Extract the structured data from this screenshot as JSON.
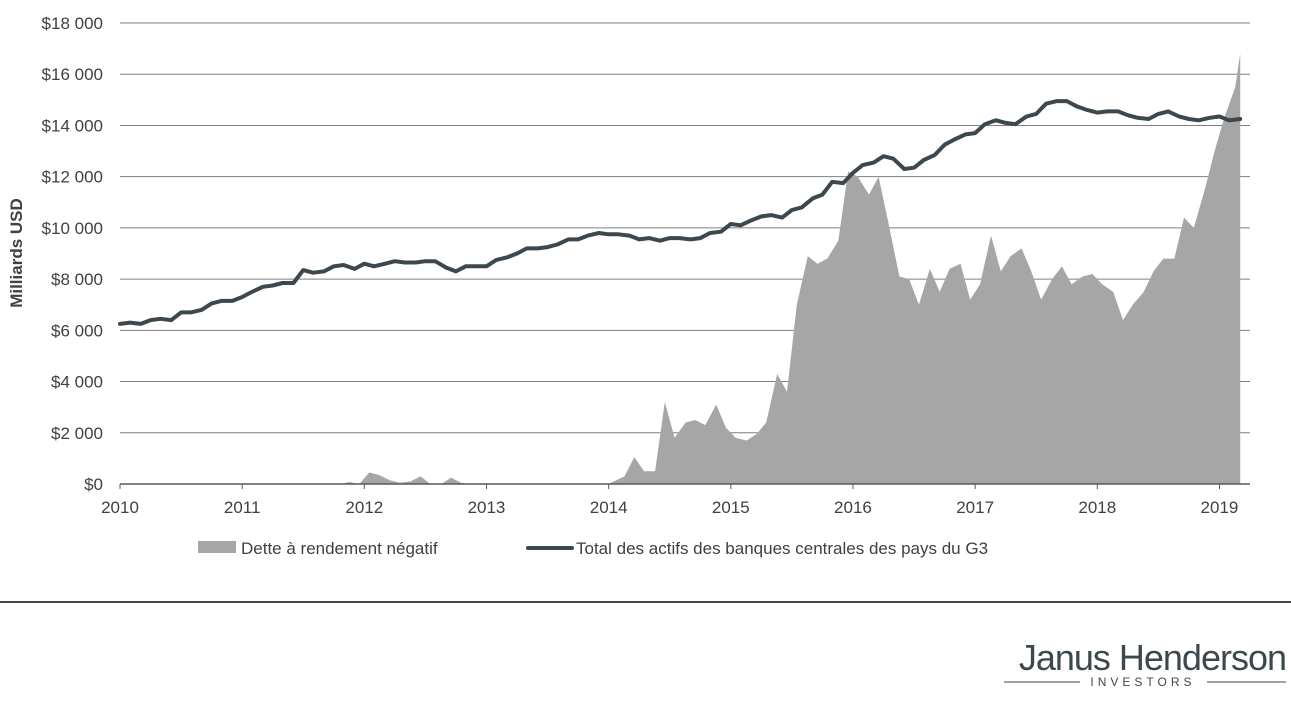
{
  "chart_data": {
    "type": "area+line",
    "ylabel": "Milliards USD",
    "ylim": [
      0,
      18000
    ],
    "y_ticks": [
      0,
      2000,
      4000,
      6000,
      8000,
      10000,
      12000,
      14000,
      16000,
      18000
    ],
    "y_tick_labels": [
      "$0",
      "$2 000",
      "$4 000",
      "$6 000",
      "$8 000",
      "$10 000",
      "$12 000",
      "$14 000",
      "$16 000",
      "$18 000"
    ],
    "xlim": [
      2010,
      2019.25
    ],
    "x_ticks": [
      2010,
      2011,
      2012,
      2013,
      2014,
      2015,
      2016,
      2017,
      2018,
      2019
    ],
    "x_tick_labels": [
      "2010",
      "2011",
      "2012",
      "2013",
      "2014",
      "2015",
      "2016",
      "2017",
      "2018",
      "2019"
    ],
    "grid": "horizontal",
    "legend_position": "bottom",
    "series": [
      {
        "name": "Dette à rendement négatif",
        "kind": "area",
        "color": "#a6a6a6",
        "x": [
          2010.0,
          2011.0,
          2011.8,
          2011.88,
          2011.96,
          2012.04,
          2012.12,
          2012.21,
          2012.29,
          2012.38,
          2012.46,
          2012.54,
          2012.63,
          2012.71,
          2012.79,
          2012.88,
          2012.96,
          2013.5,
          2014.0,
          2014.13,
          2014.21,
          2014.29,
          2014.38,
          2014.46,
          2014.54,
          2014.63,
          2014.71,
          2014.79,
          2014.88,
          2014.96,
          2015.04,
          2015.13,
          2015.21,
          2015.29,
          2015.38,
          2015.46,
          2015.54,
          2015.63,
          2015.71,
          2015.79,
          2015.88,
          2015.96,
          2016.04,
          2016.13,
          2016.21,
          2016.29,
          2016.38,
          2016.46,
          2016.54,
          2016.63,
          2016.71,
          2016.79,
          2016.88,
          2016.96,
          2017.04,
          2017.13,
          2017.21,
          2017.29,
          2017.38,
          2017.46,
          2017.54,
          2017.63,
          2017.71,
          2017.79,
          2017.88,
          2017.96,
          2018.04,
          2018.13,
          2018.21,
          2018.29,
          2018.38,
          2018.46,
          2018.54,
          2018.63,
          2018.71,
          2018.79,
          2018.88,
          2018.96,
          2019.04,
          2019.13,
          2019.17
        ],
        "values": [
          0,
          0,
          0,
          80,
          0,
          450,
          350,
          150,
          50,
          100,
          300,
          0,
          0,
          250,
          50,
          0,
          0,
          0,
          0,
          300,
          1050,
          500,
          500,
          3200,
          1800,
          2400,
          2500,
          2300,
          3100,
          2200,
          1800,
          1700,
          1950,
          2400,
          4300,
          3600,
          7000,
          8900,
          8600,
          8800,
          9500,
          12200,
          12000,
          11300,
          12000,
          10200,
          8100,
          8000,
          7000,
          8400,
          7500,
          8400,
          8600,
          7200,
          7800,
          9700,
          8300,
          8900,
          9200,
          8300,
          7200,
          8000,
          8500,
          7800,
          8100,
          8200,
          7800,
          7500,
          6400,
          7000,
          7500,
          8300,
          8800,
          8800,
          10400,
          10000,
          11500,
          13000,
          14300,
          15500,
          16800
        ]
      },
      {
        "name": "Total des actifs des banques centrales des pays du G3",
        "kind": "line",
        "color": "#3d474e",
        "x": [
          2010.0,
          2010.08,
          2010.17,
          2010.25,
          2010.33,
          2010.42,
          2010.5,
          2010.58,
          2010.67,
          2010.75,
          2010.83,
          2010.92,
          2011.0,
          2011.08,
          2011.17,
          2011.25,
          2011.33,
          2011.42,
          2011.5,
          2011.58,
          2011.67,
          2011.75,
          2011.83,
          2011.92,
          2012.0,
          2012.08,
          2012.17,
          2012.25,
          2012.33,
          2012.42,
          2012.5,
          2012.58,
          2012.67,
          2012.75,
          2012.83,
          2012.92,
          2013.0,
          2013.08,
          2013.17,
          2013.25,
          2013.33,
          2013.42,
          2013.5,
          2013.58,
          2013.67,
          2013.75,
          2013.83,
          2013.92,
          2014.0,
          2014.08,
          2014.17,
          2014.25,
          2014.33,
          2014.42,
          2014.5,
          2014.58,
          2014.67,
          2014.75,
          2014.83,
          2014.92,
          2015.0,
          2015.08,
          2015.17,
          2015.25,
          2015.33,
          2015.42,
          2015.5,
          2015.58,
          2015.67,
          2015.75,
          2015.83,
          2015.92,
          2016.0,
          2016.08,
          2016.17,
          2016.25,
          2016.33,
          2016.42,
          2016.5,
          2016.58,
          2016.67,
          2016.75,
          2016.83,
          2016.92,
          2017.0,
          2017.08,
          2017.17,
          2017.25,
          2017.33,
          2017.42,
          2017.5,
          2017.58,
          2017.67,
          2017.75,
          2017.83,
          2017.92,
          2018.0,
          2018.08,
          2018.17,
          2018.25,
          2018.33,
          2018.42,
          2018.5,
          2018.58,
          2018.67,
          2018.75,
          2018.83,
          2018.92,
          2019.0,
          2019.08,
          2019.17
        ],
        "values": [
          6250,
          6300,
          6250,
          6400,
          6450,
          6400,
          6700,
          6700,
          6800,
          7050,
          7150,
          7150,
          7300,
          7500,
          7700,
          7750,
          7850,
          7850,
          8350,
          8250,
          8300,
          8500,
          8550,
          8400,
          8600,
          8500,
          8600,
          8700,
          8650,
          8650,
          8700,
          8700,
          8450,
          8300,
          8500,
          8500,
          8500,
          8750,
          8850,
          9000,
          9200,
          9200,
          9250,
          9350,
          9550,
          9550,
          9700,
          9800,
          9750,
          9750,
          9700,
          9550,
          9600,
          9500,
          9600,
          9600,
          9550,
          9600,
          9800,
          9850,
          10150,
          10100,
          10300,
          10450,
          10500,
          10400,
          10700,
          10800,
          11150,
          11300,
          11800,
          11750,
          12150,
          12450,
          12550,
          12800,
          12700,
          12300,
          12350,
          12650,
          12850,
          13250,
          13450,
          13650,
          13700,
          14050,
          14200,
          14100,
          14050,
          14350,
          14450,
          14850,
          14950,
          14950,
          14750,
          14600,
          14500,
          14550,
          14550,
          14400,
          14300,
          14250,
          14450,
          14550,
          14350,
          14250,
          14200,
          14300,
          14350,
          14200,
          14250
        ]
      }
    ]
  },
  "legend": [
    {
      "label": "Dette à rendement négatif"
    },
    {
      "label": "Total des actifs des banques centrales des pays du G3"
    }
  ],
  "brand": {
    "name": "Janus Henderson",
    "tagline": "INVESTORS"
  }
}
